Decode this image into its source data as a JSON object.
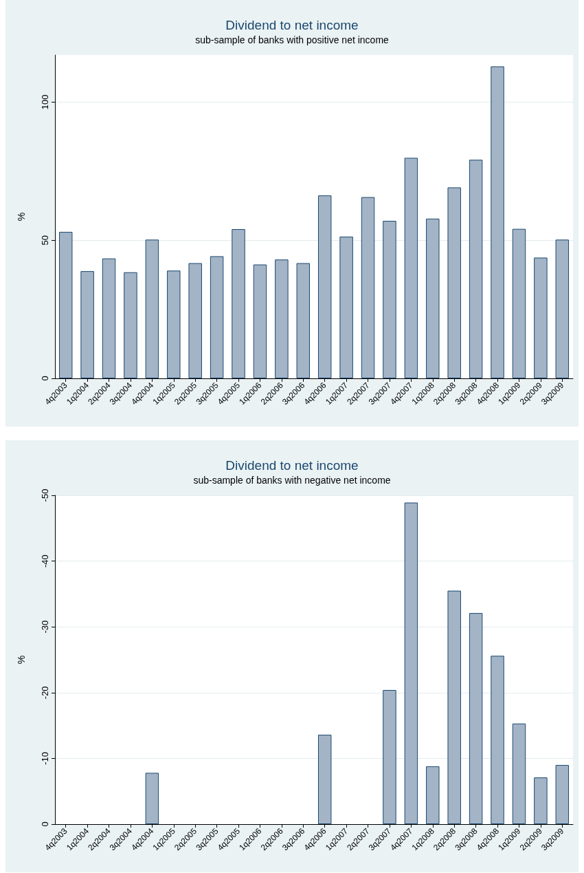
{
  "chart_data": [
    {
      "type": "bar",
      "title": "Dividend to net income",
      "subtitle": "sub-sample of banks with positive net income",
      "ylabel": "%",
      "categories": [
        "4q2003",
        "1q2004",
        "2q2004",
        "3q2004",
        "4q2004",
        "1q2005",
        "2q2005",
        "3q2005",
        "4q2005",
        "1q2006",
        "2q2006",
        "3q2006",
        "4q2006",
        "1q2007",
        "2q2007",
        "3q2007",
        "4q2007",
        "1q2008",
        "2q2008",
        "3q2008",
        "4q2008",
        "1q2009",
        "2q2009",
        "3q2009"
      ],
      "values": [
        53.0,
        38.8,
        43.4,
        38.4,
        50.2,
        39.0,
        41.7,
        44.2,
        54.0,
        41.2,
        43.0,
        41.7,
        66.2,
        51.3,
        65.6,
        57.0,
        79.8,
        57.8,
        69.1,
        79.1,
        112.9,
        54.1,
        43.7,
        50.2
      ],
      "color": "#a3b4c6",
      "ylim": [
        0,
        117
      ],
      "yticks": [
        0,
        50,
        100
      ],
      "grid": "y"
    },
    {
      "type": "bar",
      "title": "Dividend to net income",
      "subtitle": "sub-sample of banks with negative net income",
      "ylabel": "%",
      "categories": [
        "4q2003",
        "1q2004",
        "2q2004",
        "3q2004",
        "4q2004",
        "1q2005",
        "2q2005",
        "3q2005",
        "4q2005",
        "1q2006",
        "2q2006",
        "3q2006",
        "4q2006",
        "1q2007",
        "2q2007",
        "3q2007",
        "4q2007",
        "1q2008",
        "2q2008",
        "3q2008",
        "4q2008",
        "1q2009",
        "2q2009",
        "3q2009"
      ],
      "values": [
        null,
        null,
        null,
        null,
        -7.8,
        null,
        null,
        null,
        null,
        null,
        null,
        null,
        -13.6,
        null,
        null,
        -20.4,
        -48.9,
        -8.8,
        -35.5,
        -32.1,
        -25.6,
        -15.3,
        -7.1,
        -9.0
      ],
      "color": "#a3b4c6",
      "ylim": [
        0,
        -50
      ],
      "yticks": [
        0,
        -10,
        -20,
        -30,
        -40,
        -50
      ],
      "grid": "y"
    }
  ]
}
